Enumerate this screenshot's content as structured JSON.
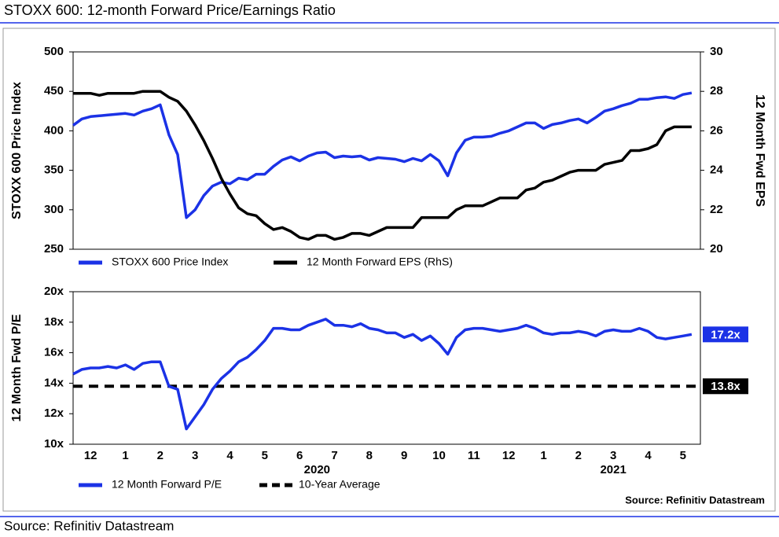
{
  "title": "STOXX 600: 12-month Forward Price/Earnings Ratio",
  "footer": "Source: Refinitiv Datastream",
  "chart_data": [
    {
      "type": "line",
      "y_label": "STOXX 600 Price Index",
      "y2_label": "12 Month Fwd EPS",
      "x": [
        0,
        0.25,
        0.5,
        0.75,
        1,
        1.25,
        1.5,
        1.75,
        2,
        2.25,
        2.5,
        2.75,
        3,
        3.25,
        3.5,
        3.75,
        4,
        4.25,
        4.5,
        4.75,
        5,
        5.25,
        5.5,
        5.75,
        6,
        6.25,
        6.5,
        6.75,
        7,
        7.25,
        7.5,
        7.75,
        8,
        8.25,
        8.5,
        8.75,
        9,
        9.25,
        9.5,
        9.75,
        10,
        10.25,
        10.5,
        10.75,
        11,
        11.25,
        11.5,
        11.75,
        12,
        12.25,
        12.5,
        12.75,
        13,
        13.25,
        13.5,
        13.75,
        14,
        14.25,
        14.5,
        14.75,
        15,
        15.25,
        15.5,
        15.75,
        16,
        16.25,
        16.5,
        16.75,
        17,
        17.25,
        17.5,
        17.75
      ],
      "xlim": [
        0,
        18
      ],
      "ylim": [
        250,
        500
      ],
      "yticks": [
        250,
        300,
        350,
        400,
        450,
        500
      ],
      "y2lim": [
        20,
        30
      ],
      "y2ticks": [
        20,
        22,
        24,
        26,
        28,
        30
      ],
      "legend": "bottom",
      "series": [
        {
          "name": "STOXX 600 Price Index",
          "color": "#1b32e6",
          "values": [
            407,
            415,
            418,
            419,
            420,
            421,
            422,
            420,
            425,
            428,
            433,
            395,
            370,
            290,
            300,
            318,
            330,
            335,
            333,
            340,
            338,
            345,
            345,
            355,
            363,
            367,
            362,
            368,
            372,
            373,
            366,
            368,
            367,
            368,
            363,
            366,
            365,
            364,
            361,
            365,
            362,
            370,
            362,
            343,
            372,
            388,
            392,
            392,
            393,
            397,
            400,
            405,
            410,
            410,
            403,
            408,
            410,
            413,
            415,
            410,
            417,
            425,
            428,
            432,
            435,
            440,
            440,
            442,
            443,
            441,
            446,
            448
          ]
        },
        {
          "name": "12 Month Forward EPS (RhS)",
          "color": "#000000",
          "axis": "y2",
          "values": [
            27.9,
            27.9,
            27.9,
            27.8,
            27.9,
            27.9,
            27.9,
            27.9,
            28.0,
            28.0,
            28.0,
            27.7,
            27.5,
            27.0,
            26.3,
            25.5,
            24.6,
            23.6,
            22.8,
            22.1,
            21.8,
            21.7,
            21.3,
            21.0,
            21.1,
            20.9,
            20.6,
            20.5,
            20.7,
            20.7,
            20.5,
            20.6,
            20.8,
            20.8,
            20.7,
            20.9,
            21.1,
            21.1,
            21.1,
            21.1,
            21.6,
            21.6,
            21.6,
            21.6,
            22.0,
            22.2,
            22.2,
            22.2,
            22.4,
            22.6,
            22.6,
            22.6,
            23.0,
            23.1,
            23.4,
            23.5,
            23.7,
            23.9,
            24.0,
            24.0,
            24.0,
            24.3,
            24.4,
            24.5,
            25.0,
            25.0,
            25.1,
            25.3,
            26.0,
            26.2,
            26.2,
            26.2
          ]
        }
      ]
    },
    {
      "type": "line",
      "y_label": "12 Month Fwd P/E",
      "source": "Source: Refinitiv Datastream",
      "x": [
        0,
        0.25,
        0.5,
        0.75,
        1,
        1.25,
        1.5,
        1.75,
        2,
        2.25,
        2.5,
        2.75,
        3,
        3.25,
        3.5,
        3.75,
        4,
        4.25,
        4.5,
        4.75,
        5,
        5.25,
        5.5,
        5.75,
        6,
        6.25,
        6.5,
        6.75,
        7,
        7.25,
        7.5,
        7.75,
        8,
        8.25,
        8.5,
        8.75,
        9,
        9.25,
        9.5,
        9.75,
        10,
        10.25,
        10.5,
        10.75,
        11,
        11.25,
        11.5,
        11.75,
        12,
        12.25,
        12.5,
        12.75,
        13,
        13.25,
        13.5,
        13.75,
        14,
        14.25,
        14.5,
        14.75,
        15,
        15.25,
        15.5,
        15.75,
        16,
        16.25,
        16.5,
        16.75,
        17,
        17.25,
        17.5,
        17.75
      ],
      "xlim": [
        0,
        18
      ],
      "xticks": [
        {
          "value": 0.5,
          "label": "12"
        },
        {
          "value": 1.5,
          "label": "1"
        },
        {
          "value": 2.5,
          "label": "2"
        },
        {
          "value": 3.5,
          "label": "3"
        },
        {
          "value": 4.5,
          "label": "4"
        },
        {
          "value": 5.5,
          "label": "5"
        },
        {
          "value": 6.5,
          "label": "6"
        },
        {
          "value": 7.5,
          "label": "7"
        },
        {
          "value": 8.5,
          "label": "8"
        },
        {
          "value": 9.5,
          "label": "9"
        },
        {
          "value": 10.5,
          "label": "10"
        },
        {
          "value": 11.5,
          "label": "11"
        },
        {
          "value": 12.5,
          "label": "12"
        },
        {
          "value": 13.5,
          "label": "1"
        },
        {
          "value": 14.5,
          "label": "2"
        },
        {
          "value": 15.5,
          "label": "3"
        },
        {
          "value": 16.5,
          "label": "4"
        },
        {
          "value": 17.5,
          "label": "5"
        }
      ],
      "xgroups": [
        {
          "value": 7,
          "label": "2020"
        },
        {
          "value": 15.5,
          "label": "2021"
        }
      ],
      "ylim": [
        10,
        20
      ],
      "yticks": [
        {
          "value": 10,
          "label": "10x"
        },
        {
          "value": 12,
          "label": "12x"
        },
        {
          "value": 14,
          "label": "14x"
        },
        {
          "value": 16,
          "label": "16x"
        },
        {
          "value": 18,
          "label": "18x"
        },
        {
          "value": 20,
          "label": "20x"
        }
      ],
      "legend": "bottom",
      "series": [
        {
          "name": "12 Month Forward P/E",
          "color": "#1b32e6",
          "last_label": "17.2x",
          "values": [
            14.6,
            14.9,
            15.0,
            15.0,
            15.1,
            15.0,
            15.2,
            14.9,
            15.3,
            15.4,
            15.4,
            13.8,
            13.6,
            11.0,
            11.8,
            12.6,
            13.6,
            14.3,
            14.8,
            15.4,
            15.7,
            16.2,
            16.8,
            17.6,
            17.6,
            17.5,
            17.5,
            17.8,
            18.0,
            18.2,
            17.8,
            17.8,
            17.7,
            17.9,
            17.6,
            17.5,
            17.3,
            17.3,
            17.0,
            17.2,
            16.8,
            17.1,
            16.6,
            15.9,
            17.0,
            17.5,
            17.6,
            17.6,
            17.5,
            17.4,
            17.5,
            17.6,
            17.8,
            17.6,
            17.3,
            17.2,
            17.3,
            17.3,
            17.4,
            17.3,
            17.1,
            17.4,
            17.5,
            17.4,
            17.4,
            17.6,
            17.4,
            17.0,
            16.9,
            17.0,
            17.1,
            17.2
          ]
        }
      ],
      "hlines": [
        {
          "name": "10-Year Average",
          "value": 13.8,
          "label": "13.8x",
          "color": "#000000"
        }
      ]
    }
  ]
}
